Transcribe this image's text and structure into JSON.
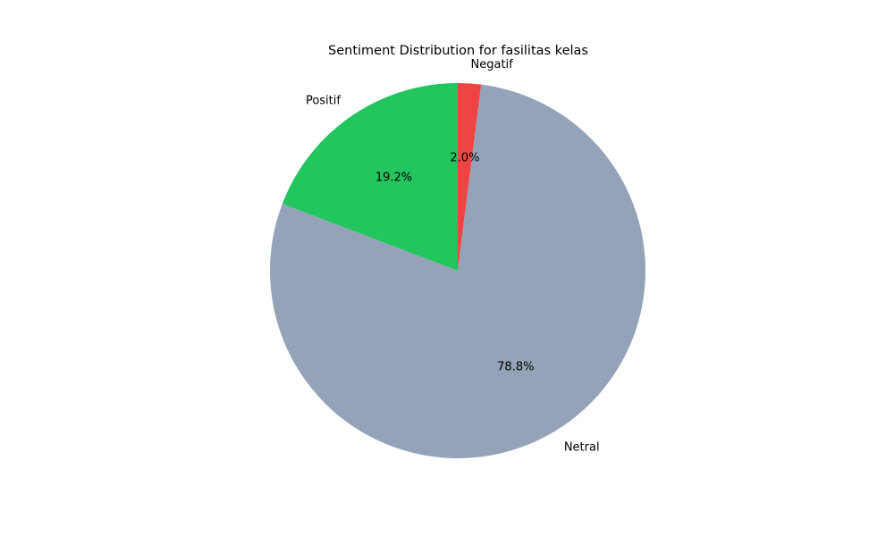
{
  "chart_data": {
    "type": "pie",
    "title": "Sentiment Distribution for fasilitas kelas",
    "slices": [
      {
        "label": "Negatif",
        "percent": 2.0,
        "percent_label": "2.0%",
        "color": "#ef4444"
      },
      {
        "label": "Netral",
        "percent": 78.8,
        "percent_label": "78.8%",
        "color": "#94a3b8"
      },
      {
        "label": "Positif",
        "percent": 19.2,
        "percent_label": "19.2%",
        "color": "#22c55e"
      }
    ],
    "start_angle": "top",
    "direction": "clockwise",
    "legend": "none"
  }
}
